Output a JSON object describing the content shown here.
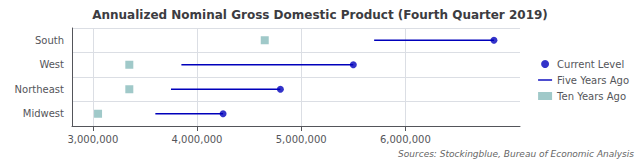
{
  "chart_data": {
    "type": "dot",
    "orientation": "horizontal",
    "title": "Annualized Nominal Gross Domestic Product (Fourth Quarter 2019)",
    "annotations": [
      "Sources: Stockingblue, Bureau of Economic Analysis"
    ],
    "categories": [
      "South",
      "West",
      "Northeast",
      "Midwest"
    ],
    "series": [
      {
        "name": "Current Level",
        "type": "scatter",
        "marker": "circle",
        "color": "#0000bb",
        "values": [
          6850000,
          5500000,
          4800000,
          4250000
        ]
      },
      {
        "name": "Five Years Ago",
        "type": "range",
        "line_style": "solid",
        "color": "#0000bb",
        "values": [
          5700000,
          3850000,
          3750000,
          3600000
        ]
      },
      {
        "name": "Ten Years Ago",
        "type": "scatter",
        "marker": "square",
        "color": "#88bbbb",
        "values": [
          4650000,
          3350000,
          3350000,
          3050000
        ]
      }
    ],
    "xlim": [
      2800000,
      7100000
    ],
    "xticks": [
      {
        "value": 3000000,
        "label": "3,000,000"
      },
      {
        "value": 4000000,
        "label": "4,000,000"
      },
      {
        "value": 5000000,
        "label": "5,000,000"
      },
      {
        "value": 6000000,
        "label": "6,000,000"
      }
    ],
    "grid": true,
    "legend": "right"
  }
}
